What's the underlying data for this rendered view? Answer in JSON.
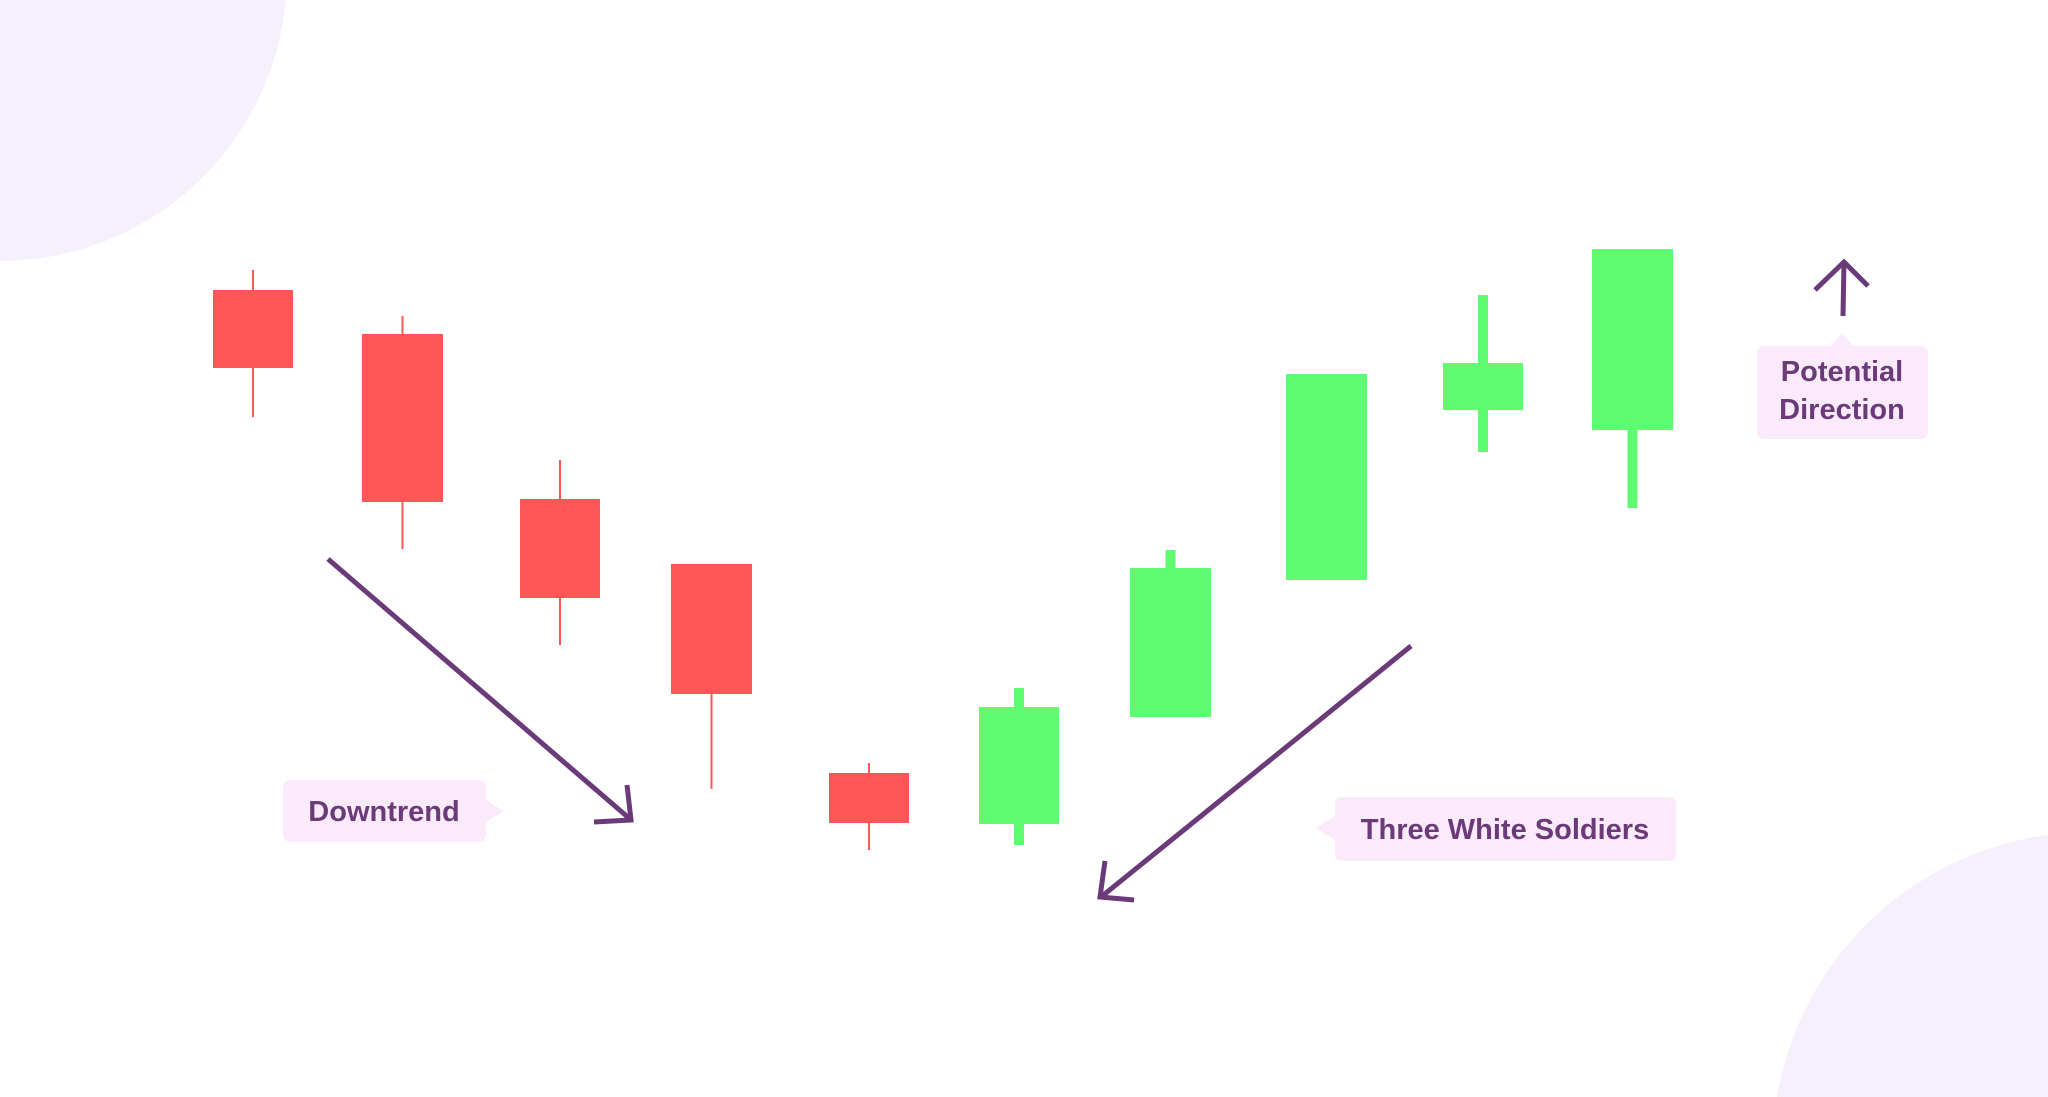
{
  "colors": {
    "bearish": "#ff5757",
    "bullish": "#5ffc72",
    "annotation": "#6b3a78",
    "label_bg": "#fbeafc",
    "decor_bg": "#f6f0fc"
  },
  "candles": [
    {
      "direction": "bearish"
    },
    {
      "direction": "bearish"
    },
    {
      "direction": "bearish"
    },
    {
      "direction": "bearish"
    },
    {
      "direction": "bearish"
    },
    {
      "direction": "bullish"
    },
    {
      "direction": "bullish"
    },
    {
      "direction": "bullish"
    },
    {
      "direction": "bullish"
    },
    {
      "direction": "bullish"
    }
  ],
  "labels": {
    "downtrend": "Downtrend",
    "three_white_soldiers": "Three White Soldiers",
    "potential_direction_line1": "Potential",
    "potential_direction_line2": "Direction"
  }
}
